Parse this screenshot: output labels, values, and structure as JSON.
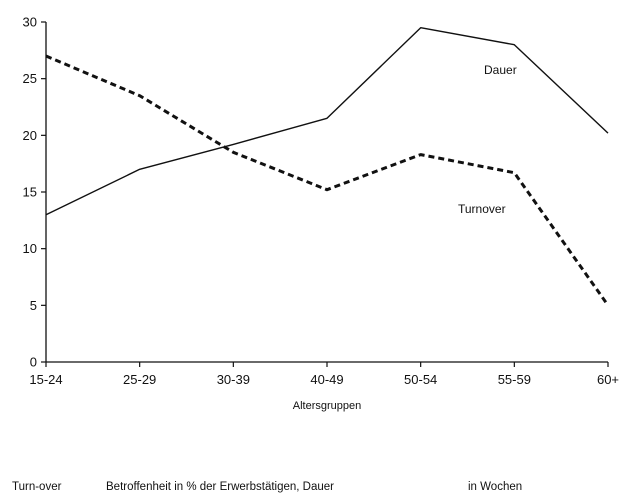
{
  "chart_data": {
    "type": "line",
    "categories": [
      "15-24",
      "25-29",
      "30-39",
      "40-49",
      "50-54",
      "55-59",
      "60+"
    ],
    "series": [
      {
        "name": "Dauer",
        "values": [
          13.0,
          17.0,
          19.2,
          21.5,
          29.5,
          28.0,
          20.2
        ],
        "style": "solid",
        "color": "#111111"
      },
      {
        "name": "Turnover",
        "values": [
          27.0,
          23.5,
          18.5,
          15.2,
          18.3,
          16.7,
          5.0
        ],
        "style": "dashed",
        "color": "#111111"
      }
    ],
    "yticks": [
      0,
      5,
      10,
      15,
      20,
      25,
      30
    ],
    "ylim": [
      0,
      30
    ],
    "xlabel": "Altersgruppen",
    "ylabel": "",
    "grid": false
  },
  "footnote": {
    "part1": "Turn-over",
    "part2": "Betroffenheit in % der Erwerbstätigen, Dauer",
    "part3": "in Wochen"
  }
}
